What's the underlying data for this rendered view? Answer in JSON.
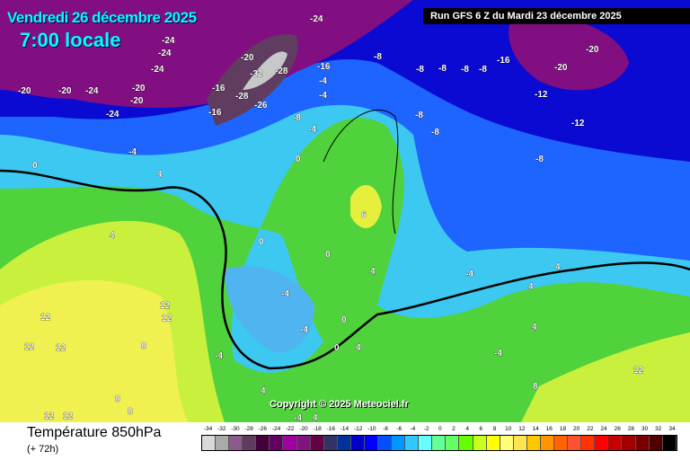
{
  "header": {
    "date": "Vendredi 26 décembre 2025",
    "time": "7:00 locale",
    "run": "Run GFS 6 Z du Mardi 23 décembre 2025"
  },
  "copyright": "Copyright © 2025 Meteociel.fr",
  "footer": {
    "title": "Température 850hPa",
    "subtitle": "(+ 72h)"
  },
  "legend": {
    "values": [
      "-34",
      "-32",
      "-30",
      "-28",
      "-26",
      "-24",
      "-22",
      "-20",
      "-18",
      "-16",
      "-14",
      "-12",
      "-10",
      "-8",
      "-6",
      "-4",
      "-2",
      "0",
      "2",
      "4",
      "6",
      "8",
      "10",
      "12",
      "14",
      "16",
      "18",
      "20",
      "22",
      "24",
      "26",
      "28",
      "30",
      "32",
      "34"
    ],
    "colors": [
      "#d9d9d9",
      "#aaaaaa",
      "#8c5a8c",
      "#603c60",
      "#46003c",
      "#640064",
      "#a000a0",
      "#821482",
      "#640046",
      "#323264",
      "#00329b",
      "#0000c8",
      "#0000ff",
      "#0050ff",
      "#0096ff",
      "#32c8ff",
      "#64ffff",
      "#64ff96",
      "#64ff64",
      "#64ff00",
      "#c8ff1e",
      "#ffff00",
      "#ffff78",
      "#ffe650",
      "#ffc800",
      "#ff9600",
      "#ff6400",
      "#ff5032",
      "#ff3200",
      "#ff0000",
      "#c80000",
      "#a00000",
      "#780000",
      "#500000",
      "#000000"
    ]
  },
  "map_labels": [
    "-20",
    "-24",
    "-20",
    "-20",
    "-24",
    "-24",
    "-24",
    "-28",
    "-20",
    "-32",
    "-28",
    "-16",
    "-26",
    "-24",
    "-16",
    "-4",
    "-4",
    "-8",
    "-8",
    "-8",
    "-8",
    "-8",
    "-16",
    "-20",
    "-12",
    "-12",
    "-8",
    "-8",
    "-8",
    "-8",
    "-4",
    "0",
    "0",
    "-4",
    "4",
    "4",
    "6",
    "0",
    "0",
    "-4",
    "4",
    "-4",
    "0",
    "4",
    "-4",
    "4",
    "-4",
    "4",
    "0",
    "12",
    "12",
    "12",
    "12",
    "12",
    "8",
    "8",
    "8",
    "12",
    "12",
    "-4",
    "-4",
    "4",
    "4",
    "4",
    "8",
    "12",
    "-20",
    "-16",
    "-24",
    "-20"
  ]
}
